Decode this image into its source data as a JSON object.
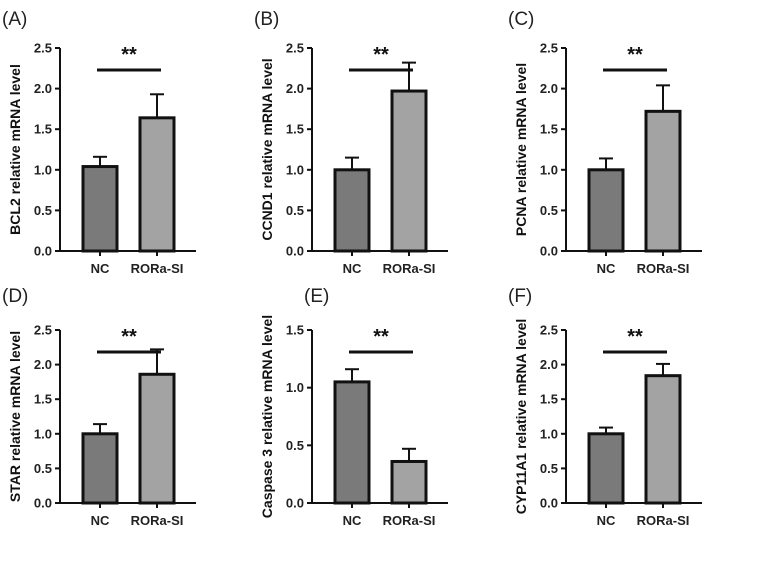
{
  "chart_data": [
    {
      "type": "bar",
      "panel": "(A)",
      "ylabel": "BCL2 relative mRNA level",
      "categories": [
        "NC",
        "RORa-SI"
      ],
      "values": [
        1.04,
        1.64
      ],
      "errors": [
        0.12,
        0.29
      ],
      "ylim": [
        0,
        2.5
      ],
      "yticks": [
        "0.0",
        "0.5",
        "1.0",
        "1.5",
        "2.0",
        "2.5"
      ],
      "significance": "**",
      "colors": [
        "#7a7a7a",
        "#a3a3a3"
      ]
    },
    {
      "type": "bar",
      "panel": "(B)",
      "ylabel": "CCND1 relative mRNA level",
      "categories": [
        "NC",
        "RORa-SI"
      ],
      "values": [
        1.0,
        1.97
      ],
      "errors": [
        0.15,
        0.35
      ],
      "ylim": [
        0,
        2.5
      ],
      "yticks": [
        "0.0",
        "0.5",
        "1.0",
        "1.5",
        "2.0",
        "2.5"
      ],
      "significance": "**",
      "colors": [
        "#7a7a7a",
        "#a3a3a3"
      ]
    },
    {
      "type": "bar",
      "panel": "(C)",
      "ylabel": "PCNA relative mRNA level",
      "categories": [
        "NC",
        "RORa-SI"
      ],
      "values": [
        1.0,
        1.72
      ],
      "errors": [
        0.14,
        0.32
      ],
      "ylim": [
        0,
        2.5
      ],
      "yticks": [
        "0.0",
        "0.5",
        "1.0",
        "1.5",
        "2.0",
        "2.5"
      ],
      "significance": "**",
      "colors": [
        "#7a7a7a",
        "#a3a3a3"
      ]
    },
    {
      "type": "bar",
      "panel": "(D)",
      "ylabel": "STAR relative mRNA level",
      "categories": [
        "NC",
        "RORa-SI"
      ],
      "values": [
        1.0,
        1.86
      ],
      "errors": [
        0.14,
        0.36
      ],
      "ylim": [
        0,
        2.5
      ],
      "yticks": [
        "0.0",
        "0.5",
        "1.0",
        "1.5",
        "2.0",
        "2.5"
      ],
      "significance": "**",
      "colors": [
        "#7a7a7a",
        "#a3a3a3"
      ]
    },
    {
      "type": "bar",
      "panel": "(E)",
      "ylabel": "Caspase 3 relative mRNA level",
      "categories": [
        "NC",
        "RORa-SI"
      ],
      "values": [
        1.05,
        0.36
      ],
      "errors": [
        0.11,
        0.11
      ],
      "ylim": [
        0,
        1.5
      ],
      "yticks": [
        "0.0",
        "0.5",
        "1.0",
        "1.5"
      ],
      "significance": "**",
      "colors": [
        "#7a7a7a",
        "#a3a3a3"
      ]
    },
    {
      "type": "bar",
      "panel": "(F)",
      "ylabel": "CYP11A1 relative mRNA level",
      "categories": [
        "NC",
        "RORa-SI"
      ],
      "values": [
        1.0,
        1.84
      ],
      "errors": [
        0.09,
        0.17
      ],
      "ylim": [
        0,
        2.5
      ],
      "yticks": [
        "0.0",
        "0.5",
        "1.0",
        "1.5",
        "2.0",
        "2.5"
      ],
      "significance": "**",
      "colors": [
        "#7a7a7a",
        "#a3a3a3"
      ]
    }
  ]
}
